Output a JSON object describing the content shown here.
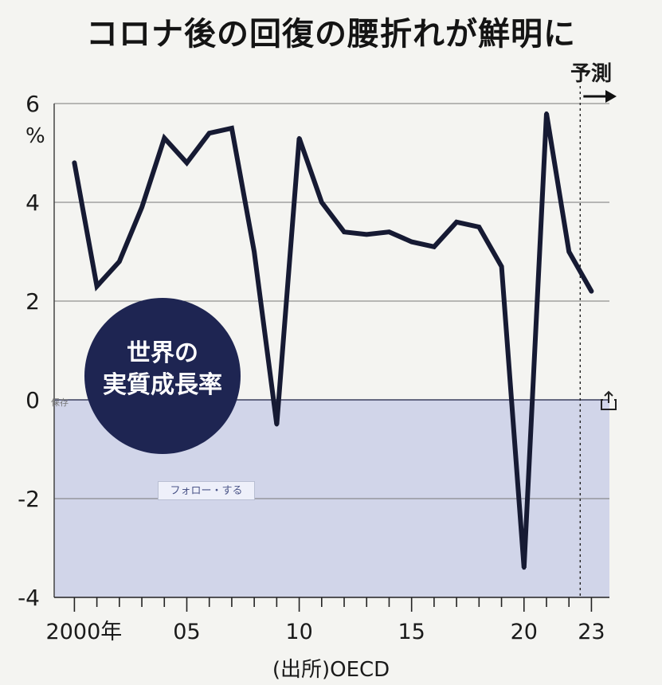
{
  "title": "コロナ後の回復の腰折れが鮮明に",
  "forecast_label": "予測",
  "unit_label": "%",
  "source": "(出所)OECD",
  "overlay": {
    "save_label": "保存",
    "follow_label": "フォロー・する"
  },
  "chart_data": {
    "type": "line",
    "title": "コロナ後の回復の腰折れが鮮明に",
    "badge": "世界の\n実質成長率",
    "badge_lines": [
      "世界の",
      "実質成長率"
    ],
    "xlabel": "",
    "ylabel": "%",
    "x": [
      2000,
      2001,
      2002,
      2003,
      2004,
      2005,
      2006,
      2007,
      2008,
      2009,
      2010,
      2011,
      2012,
      2013,
      2014,
      2015,
      2016,
      2017,
      2018,
      2019,
      2020,
      2021,
      2022,
      2023
    ],
    "values": [
      4.8,
      2.3,
      2.8,
      3.9,
      5.3,
      4.8,
      5.4,
      5.5,
      3.0,
      -0.5,
      5.3,
      4.0,
      3.4,
      3.35,
      3.4,
      3.2,
      3.1,
      3.6,
      3.5,
      2.7,
      -3.4,
      5.8,
      3.0,
      2.2
    ],
    "forecast_from": 2022.5,
    "ylim": [
      -4,
      6
    ],
    "yticks": [
      6,
      4,
      2,
      0,
      -2,
      -4
    ],
    "ytick_labels": [
      "6",
      "4",
      "2",
      "0",
      "-2",
      "-4"
    ],
    "xtick_labels": [
      {
        "x": 2000,
        "label": "2000年"
      },
      {
        "x": 2005,
        "label": "05"
      },
      {
        "x": 2010,
        "label": "10"
      },
      {
        "x": 2015,
        "label": "15"
      },
      {
        "x": 2020,
        "label": "20"
      },
      {
        "x": 2023,
        "label": "23"
      }
    ],
    "grid": true,
    "line_color": "#161a33",
    "badge_color": "#1e2552",
    "negative_fill": "#c5cbe6"
  }
}
